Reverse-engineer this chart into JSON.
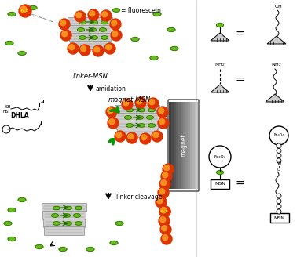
{
  "bg_color": "#ffffff",
  "colors": {
    "orange_red": "#dd3300",
    "orange_inner": "#f59020",
    "green_ellipse": "#66bb22",
    "dark_green_ellipse": "#225500",
    "silica_light": "#d0d0d0",
    "silica_mid": "#b0b0b0",
    "silica_dark": "#888888",
    "magnet_dark": "#444444",
    "magnet_mid": "#777777",
    "magnet_light": "#aaaaaa",
    "black": "#000000",
    "white": "#ffffff",
    "arrow_green": "#009900",
    "dashed_gray": "#888888",
    "arrow_dark_green": "#226600"
  },
  "labels": {
    "fluorescein": "= fluorescein",
    "linker_msn": "linker-MSN",
    "amidation": "amidation",
    "magnet_msn": "magnet-MSN",
    "dhla": "DHLA",
    "linker_cleavage": "linker cleavage",
    "magnet": "magnet",
    "oh": "OH",
    "nh2": "NH₂",
    "fe3o4_text": "Fe₃O₄",
    "msn": "MSN"
  }
}
